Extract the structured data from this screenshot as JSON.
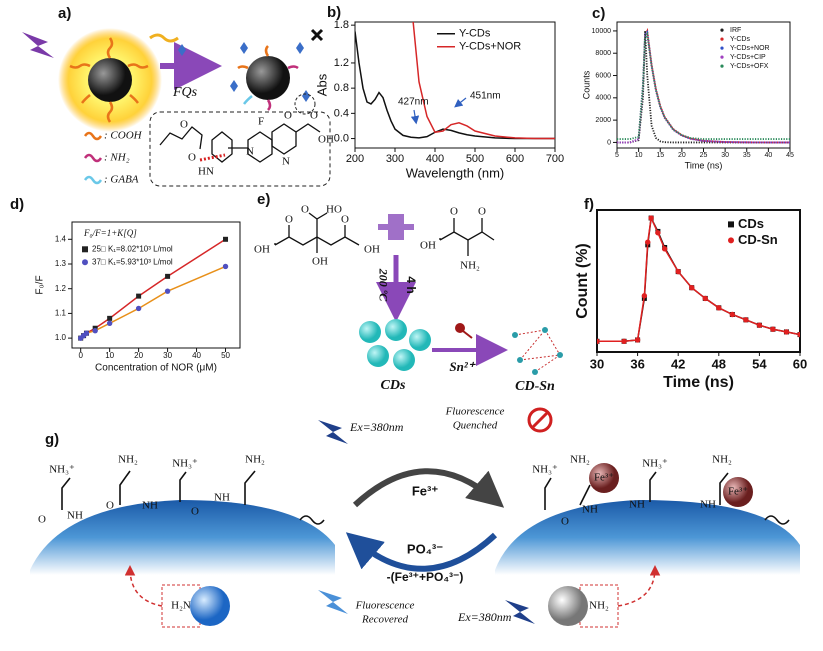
{
  "panels": {
    "a": {
      "label": "a)",
      "arrow_label": "FQs",
      "legend": [
        ": COOH",
        ": NH₂",
        ": GABA"
      ],
      "mol_labels": [
        "F",
        "O",
        "O",
        "OH",
        "N",
        "N",
        "HN",
        "O",
        "O"
      ]
    },
    "e": {
      "label": "e)",
      "time": "4 h",
      "temp": "200 ºC",
      "cds": "CDs",
      "ion": "Sn²⁺",
      "product": "CD-Sn",
      "groups": [
        "O",
        "OH",
        "HO",
        "O",
        "OH",
        "O",
        "OH",
        "O",
        "OH",
        "O",
        "NH₂"
      ]
    },
    "g": {
      "label": "g)",
      "ex_top": "Ex=380nm",
      "quenched": [
        "Fluorescence",
        "Quenched"
      ],
      "forward": "Fe³⁺",
      "backward": "PO₄³⁻",
      "backward_sub": "-(Fe³⁺+PO₄³⁻)",
      "recovered": [
        "Fluorescence",
        "Recovered"
      ],
      "ex_bottom": "Ex=380nm",
      "left_labels": [
        "NH₃⁺",
        "NH₂",
        "NH₃⁺",
        "NH₂",
        "NH",
        "O",
        "NH",
        "O",
        "NH",
        "O"
      ],
      "right_labels": [
        "NH₃⁺",
        "NH₂",
        "Fe³⁺",
        "NH₃⁺",
        "NH₂",
        "Fe³⁺",
        "NH",
        "NH",
        "O",
        "NH"
      ],
      "bottom_labels": [
        "H₂N",
        "NH₂"
      ]
    }
  },
  "chart_data": [
    {
      "type": "line",
      "panel": "b)",
      "x_label": "Wavelength (nm)",
      "y_label": "Abs",
      "legend": "upper right",
      "x": [
        200,
        210,
        220,
        230,
        240,
        250,
        260,
        270,
        280,
        290,
        300,
        320,
        340,
        360,
        380,
        400,
        420,
        440,
        460,
        480,
        500,
        550,
        600,
        650,
        700
      ],
      "series": [
        {
          "name": "Y-CDs",
          "color": "#111111",
          "values": [
            1.7,
            1.2,
            0.8,
            0.58,
            0.55,
            0.62,
            0.73,
            0.65,
            0.45,
            0.28,
            0.15,
            0.05,
            0.02,
            0.01,
            0.03,
            0.1,
            0.15,
            0.13,
            0.09,
            0.06,
            0.04,
            0.01,
            0,
            0,
            0
          ]
        },
        {
          "name": "Y-CDs+NOR",
          "color": "#d62728",
          "values": [
            null,
            null,
            null,
            null,
            null,
            null,
            null,
            null,
            null,
            null,
            null,
            null,
            2.2,
            0.9,
            0.35,
            0.1,
            0.12,
            0.22,
            0.25,
            0.2,
            0.12,
            0.04,
            0.01,
            0,
            0
          ]
        }
      ],
      "annotations": [
        "427nm",
        "451nm"
      ],
      "xlim": [
        200,
        700
      ],
      "xticks": [
        200,
        300,
        400,
        500,
        600,
        700
      ],
      "ylim": [
        -0.15,
        1.85
      ],
      "yticks": [
        {
          "value": 0,
          "label": "0.0"
        },
        {
          "value": 0.4,
          "label": "0.4"
        },
        {
          "value": 0.8,
          "label": "0.8"
        },
        {
          "value": 1.2,
          "label": "1.2"
        },
        {
          "value": 1.8,
          "label": "1.8"
        }
      ]
    },
    {
      "type": "line",
      "panel": "c)",
      "x_label": "Time (ns)",
      "y_label": "Counts",
      "legend": "upper right",
      "line_style": "dotted",
      "x": [
        5,
        8,
        10,
        11,
        11.5,
        12,
        13,
        14,
        15,
        16,
        18,
        20,
        22,
        25,
        30,
        35,
        40,
        45
      ],
      "series": [
        {
          "name": "IRF",
          "color": "#222222",
          "values": [
            0,
            0,
            200,
            4000,
            10000,
            6000,
            1500,
            400,
            100,
            20,
            0,
            0,
            0,
            0,
            0,
            0,
            0,
            0
          ]
        },
        {
          "name": "Y-CDs",
          "color": "#d62728",
          "values": [
            0,
            0,
            300,
            5000,
            9600,
            10000,
            7000,
            4800,
            3300,
            2300,
            1200,
            650,
            350,
            150,
            40,
            10,
            0,
            0
          ]
        },
        {
          "name": "Y-CDs+NOR",
          "color": "#3050c8",
          "values": [
            0,
            0,
            300,
            5200,
            9700,
            9900,
            6900,
            4700,
            3200,
            2250,
            1150,
            620,
            330,
            140,
            35,
            10,
            0,
            0
          ]
        },
        {
          "name": "Y-CDs+CIP",
          "color": "#a040c0",
          "values": [
            0,
            0,
            280,
            4900,
            9500,
            9800,
            6800,
            4650,
            3150,
            2200,
            1120,
            600,
            320,
            130,
            30,
            8,
            0,
            0
          ]
        },
        {
          "name": "Y-CDs+OFX",
          "color": "#2a8a5a",
          "values": [
            300,
            300,
            500,
            5000,
            9400,
            9700,
            6850,
            4700,
            3200,
            2250,
            1150,
            650,
            400,
            300,
            300,
            300,
            300,
            300
          ]
        }
      ],
      "xlim": [
        5,
        45
      ],
      "xticks": [
        5,
        10,
        15,
        20,
        25,
        30,
        35,
        40,
        45
      ],
      "ylim": [
        -500,
        10800
      ],
      "yticks": [
        0,
        2000,
        4000,
        6000,
        8000,
        10000
      ]
    },
    {
      "type": "line",
      "panel": "d)",
      "x_label": "Concentration of NOR (μM)",
      "y_label": "F₀/F",
      "legend": "upper left",
      "markers": true,
      "equation": "F₀/F=1+K[Q]",
      "x": [
        0,
        1,
        2,
        5,
        10,
        20,
        30,
        50
      ],
      "series": [
        {
          "name": "25□  K₁=8.02*10³ L/mol",
          "color": "#222222",
          "line_color": "#d62728",
          "marker": "square",
          "values": [
            1.0,
            1.01,
            1.02,
            1.04,
            1.08,
            1.17,
            1.25,
            1.4
          ]
        },
        {
          "name": "37□  K₁=5.93*10³ L/mol",
          "color": "#5050c0",
          "line_color": "#e8901a",
          "marker": "circle",
          "values": [
            1.0,
            1.01,
            1.02,
            1.03,
            1.06,
            1.12,
            1.19,
            1.29
          ]
        }
      ],
      "xlim": [
        -3,
        55
      ],
      "xticks": [
        0,
        10,
        20,
        30,
        40,
        50
      ],
      "ylim": [
        0.96,
        1.47
      ],
      "yticks": [
        {
          "value": 1,
          "label": "1.0"
        },
        {
          "value": 1.1,
          "label": "1.1"
        },
        {
          "value": 1.2,
          "label": "1.2"
        },
        {
          "value": 1.3,
          "label": "1.3"
        },
        {
          "value": 1.4,
          "label": "1.4"
        }
      ]
    },
    {
      "type": "line",
      "panel": "f)",
      "x_label": "Time (ns)",
      "y_label": "Count (%)",
      "legend": "upper right",
      "markers": true,
      "x": [
        30,
        34,
        36,
        37,
        37.5,
        38,
        39,
        40,
        42,
        44,
        46,
        48,
        50,
        52,
        54,
        56,
        58,
        60
      ],
      "series": [
        {
          "name": "CDs",
          "color": "#111111",
          "marker": "square",
          "values": [
            0.08,
            0.08,
            0.09,
            0.4,
            0.8,
            1.0,
            0.9,
            0.78,
            0.6,
            0.48,
            0.4,
            0.33,
            0.28,
            0.24,
            0.2,
            0.17,
            0.15,
            0.13
          ]
        },
        {
          "name": "CD-Sn",
          "color": "#e02020",
          "marker": "circle",
          "values": [
            0.08,
            0.08,
            0.09,
            0.42,
            0.82,
            1.0,
            0.89,
            0.77,
            0.6,
            0.48,
            0.4,
            0.33,
            0.28,
            0.24,
            0.2,
            0.17,
            0.15,
            0.13
          ]
        }
      ],
      "xlim": [
        30,
        60
      ],
      "xticks": [
        30,
        36,
        42,
        48,
        54,
        60
      ],
      "ylim": [
        0,
        1.06
      ]
    }
  ]
}
